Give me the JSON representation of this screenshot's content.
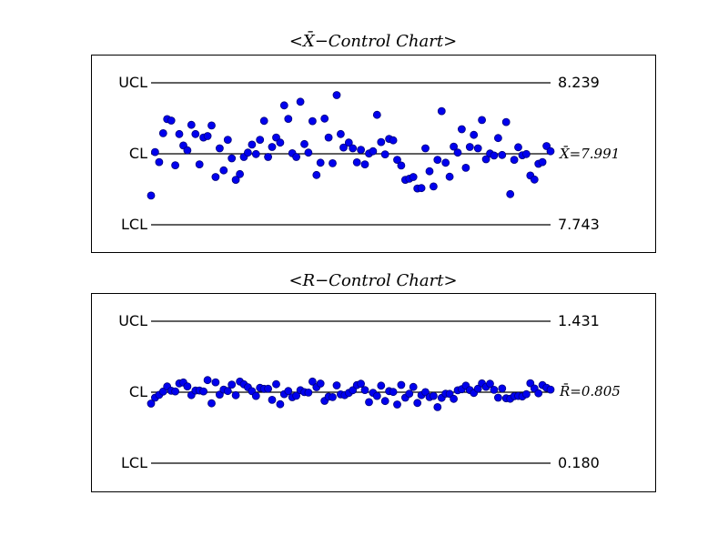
{
  "chart_data": [
    {
      "type": "scatter",
      "title": "<X̄−Control Chart>",
      "limits": {
        "ucl": 8.239,
        "cl": 7.991,
        "lcl": 7.743
      },
      "labels": {
        "ucl": "UCL",
        "cl": "CL",
        "lcl": "LCL",
        "ucl_value": "8.239",
        "cl_value": "X̄=7.991",
        "lcl_value": "7.743"
      },
      "ylim": [
        7.743,
        8.239
      ],
      "x": [
        1,
        2,
        3,
        4,
        5,
        6,
        7,
        8,
        9,
        10,
        11,
        12,
        13,
        14,
        15,
        16,
        17,
        18,
        19,
        20,
        21,
        22,
        23,
        24,
        25,
        26,
        27,
        28,
        29,
        30,
        31,
        32,
        33,
        34,
        35,
        36,
        37,
        38,
        39,
        40,
        41,
        42,
        43,
        44,
        45,
        46,
        47,
        48,
        48.7,
        50,
        51,
        52,
        53,
        54,
        55,
        56,
        57,
        58,
        59,
        60,
        61,
        62,
        63,
        64,
        65,
        66,
        67,
        68,
        69,
        70,
        71,
        72,
        73,
        74,
        75,
        76,
        77,
        78,
        79,
        80,
        81,
        82,
        83,
        84,
        85,
        86,
        87,
        88,
        89,
        90,
        91,
        92,
        93,
        94,
        95,
        96,
        97,
        98,
        99,
        100
      ],
      "values": [
        7.845,
        7.997,
        7.962,
        8.063,
        8.112,
        8.107,
        7.951,
        8.06,
        8.02,
        8.003,
        8.092,
        8.06,
        7.954,
        8.048,
        8.053,
        8.09,
        7.91,
        8.01,
        7.933,
        8.04,
        7.975,
        7.9,
        7.92,
        7.98,
        7.995,
        8.023,
        7.99,
        8.04,
        8.106,
        7.98,
        8.015,
        8.048,
        8.03,
        8.16,
        8.113,
        7.993,
        7.98,
        8.173,
        8.025,
        7.995,
        8.105,
        7.917,
        7.96,
        8.114,
        8.048,
        7.958,
        8.196,
        8.06,
        8.013,
        8.03,
        8.01,
        7.961,
        8.005,
        7.954,
        7.992,
        8.0,
        8.127,
        8.032,
        7.989,
        8.043,
        8.038,
        7.97,
        7.95,
        7.9,
        7.904,
        7.91,
        7.87,
        7.871,
        8.01,
        7.93,
        7.877,
        7.97,
        8.14,
        7.96,
        7.911,
        8.016,
        7.995,
        8.077,
        7.942,
        8.015,
        8.057,
        8.01,
        8.109,
        7.972,
        7.992,
        7.985,
        8.046,
        7.987,
        8.102,
        7.85,
        7.97,
        8.014,
        7.986,
        7.99,
        7.915,
        7.901,
        7.956,
        7.962,
        8.018,
        8.0
      ]
    },
    {
      "type": "scatter",
      "title": "<R−Control Chart>",
      "limits": {
        "ucl": 1.431,
        "cl": 0.805,
        "lcl": 0.18
      },
      "labels": {
        "ucl": "UCL",
        "cl": "CL",
        "lcl": "LCL",
        "ucl_value": "1.431",
        "cl_value": "R̄=0.805",
        "lcl_value": "0.180"
      },
      "ylim": [
        0.18,
        1.431
      ],
      "x": [
        1,
        2,
        3,
        4,
        5,
        6,
        7,
        8,
        9,
        10,
        11,
        12,
        13,
        14,
        15,
        16,
        17,
        18,
        19,
        20,
        21,
        22,
        23,
        24,
        25,
        26,
        27,
        28,
        29,
        30,
        31,
        32,
        33,
        34,
        35,
        36,
        37,
        38,
        39,
        40,
        41,
        42,
        43,
        44,
        45,
        46,
        47,
        48,
        49,
        50,
        51,
        52,
        53,
        54,
        55,
        56,
        57,
        58,
        59,
        60,
        61,
        62,
        63,
        64,
        65,
        66,
        67,
        68,
        69,
        70,
        71,
        72,
        73,
        74,
        75,
        76,
        77,
        78,
        79,
        80,
        81,
        82,
        83,
        84,
        85,
        86,
        87,
        88,
        89,
        90,
        91,
        92,
        93,
        94,
        95,
        96,
        97,
        98,
        99,
        100
      ],
      "values": [
        0.705,
        0.757,
        0.782,
        0.811,
        0.856,
        0.818,
        0.813,
        0.883,
        0.891,
        0.857,
        0.78,
        0.82,
        0.821,
        0.813,
        0.912,
        0.708,
        0.893,
        0.785,
        0.829,
        0.816,
        0.873,
        0.779,
        0.899,
        0.875,
        0.85,
        0.814,
        0.773,
        0.844,
        0.835,
        0.836,
        0.738,
        0.876,
        0.7,
        0.789,
        0.816,
        0.761,
        0.774,
        0.823,
        0.806,
        0.802,
        0.899,
        0.85,
        0.882,
        0.729,
        0.766,
        0.762,
        0.866,
        0.786,
        0.78,
        0.799,
        0.823,
        0.868,
        0.88,
        0.825,
        0.718,
        0.801,
        0.773,
        0.863,
        0.728,
        0.815,
        0.808,
        0.697,
        0.87,
        0.757,
        0.793,
        0.852,
        0.711,
        0.78,
        0.806,
        0.762,
        0.773,
        0.674,
        0.756,
        0.793,
        0.791,
        0.747,
        0.822,
        0.832,
        0.863,
        0.825,
        0.799,
        0.836,
        0.883,
        0.853,
        0.88,
        0.826,
        0.757,
        0.838,
        0.752,
        0.748,
        0.77,
        0.773,
        0.768,
        0.788,
        0.885,
        0.838,
        0.796,
        0.868,
        0.845,
        0.829
      ]
    }
  ]
}
